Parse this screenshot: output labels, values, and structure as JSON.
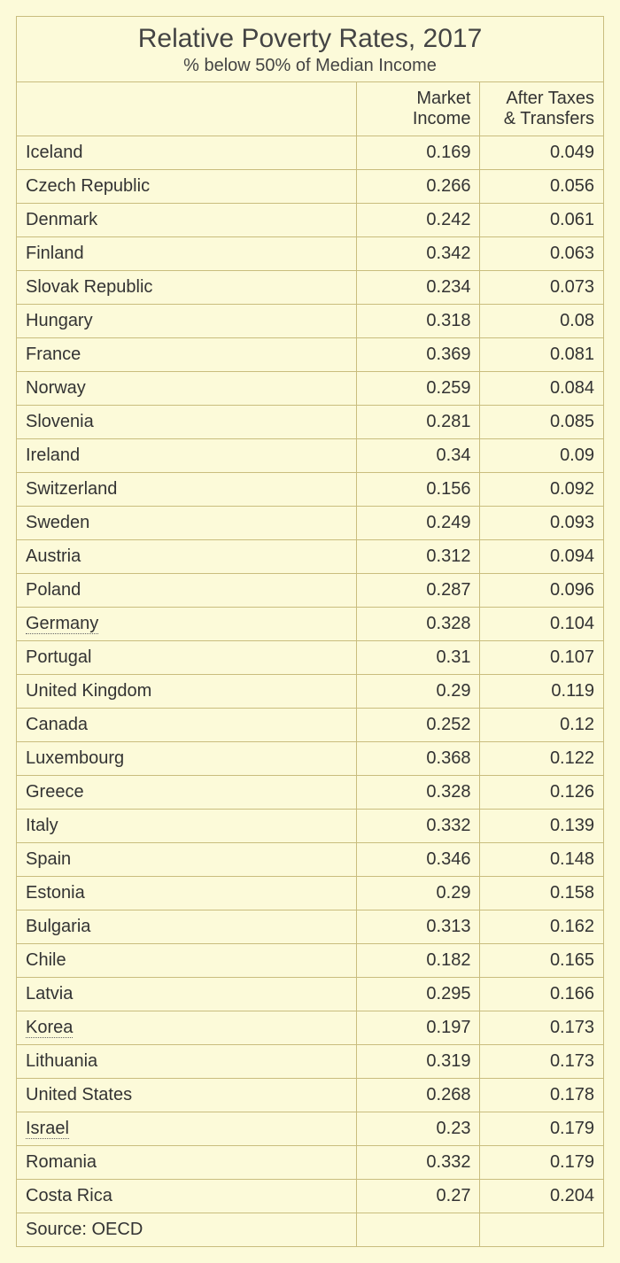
{
  "title": "Relative Poverty Rates, 2017",
  "subtitle": "% below 50% of Median Income",
  "columns": {
    "country": "",
    "market": "Market Income",
    "after": "After Taxes & Transfers"
  },
  "style": {
    "background_color": "#fcfad9",
    "border_color": "#c9bd7e",
    "title_fontsize": 30,
    "subtitle_fontsize": 20,
    "cell_fontsize": 20,
    "text_color": "#333333",
    "col_widths_pct": [
      58,
      21,
      21
    ],
    "dotted_rows": [
      "Germany",
      "Korea",
      "Israel"
    ]
  },
  "rows": [
    {
      "country": "Iceland",
      "market": "0.169",
      "after": "0.049"
    },
    {
      "country": "Czech Republic",
      "market": "0.266",
      "after": "0.056"
    },
    {
      "country": "Denmark",
      "market": "0.242",
      "after": "0.061"
    },
    {
      "country": "Finland",
      "market": "0.342",
      "after": "0.063"
    },
    {
      "country": "Slovak Republic",
      "market": "0.234",
      "after": "0.073"
    },
    {
      "country": "Hungary",
      "market": "0.318",
      "after": "0.08"
    },
    {
      "country": "France",
      "market": "0.369",
      "after": "0.081"
    },
    {
      "country": "Norway",
      "market": "0.259",
      "after": "0.084"
    },
    {
      "country": "Slovenia",
      "market": "0.281",
      "after": "0.085"
    },
    {
      "country": "Ireland",
      "market": "0.34",
      "after": "0.09"
    },
    {
      "country": "Switzerland",
      "market": "0.156",
      "after": "0.092"
    },
    {
      "country": "Sweden",
      "market": "0.249",
      "after": "0.093"
    },
    {
      "country": "Austria",
      "market": "0.312",
      "after": "0.094"
    },
    {
      "country": "Poland",
      "market": "0.287",
      "after": "0.096"
    },
    {
      "country": "Germany",
      "market": "0.328",
      "after": "0.104"
    },
    {
      "country": "Portugal",
      "market": "0.31",
      "after": "0.107"
    },
    {
      "country": "United Kingdom",
      "market": "0.29",
      "after": "0.119"
    },
    {
      "country": "Canada",
      "market": "0.252",
      "after": "0.12"
    },
    {
      "country": "Luxembourg",
      "market": "0.368",
      "after": "0.122"
    },
    {
      "country": "Greece",
      "market": "0.328",
      "after": "0.126"
    },
    {
      "country": "Italy",
      "market": "0.332",
      "after": "0.139"
    },
    {
      "country": "Spain",
      "market": "0.346",
      "after": "0.148"
    },
    {
      "country": "Estonia",
      "market": "0.29",
      "after": "0.158"
    },
    {
      "country": "Bulgaria",
      "market": "0.313",
      "after": "0.162"
    },
    {
      "country": "Chile",
      "market": "0.182",
      "after": "0.165"
    },
    {
      "country": "Latvia",
      "market": "0.295",
      "after": "0.166"
    },
    {
      "country": "Korea",
      "market": "0.197",
      "after": "0.173"
    },
    {
      "country": "Lithuania",
      "market": "0.319",
      "after": "0.173"
    },
    {
      "country": "United States",
      "market": "0.268",
      "after": "0.178"
    },
    {
      "country": "Israel",
      "market": "0.23",
      "after": "0.179"
    },
    {
      "country": "Romania",
      "market": "0.332",
      "after": "0.179"
    },
    {
      "country": "Costa Rica",
      "market": "0.27",
      "after": "0.204"
    }
  ],
  "source_label": "Source: OECD"
}
